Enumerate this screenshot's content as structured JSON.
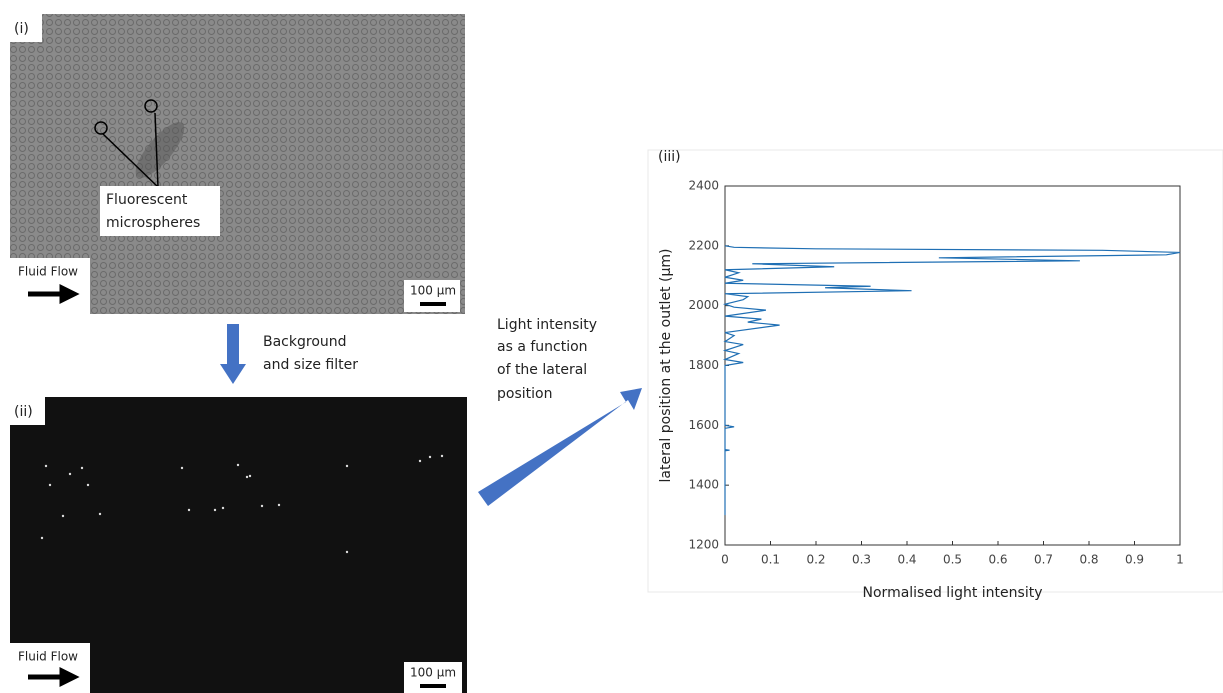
{
  "panels": {
    "i": {
      "label": "(i)",
      "annotation": [
        "Fluorescent",
        "microspheres"
      ],
      "flow": "Fluid Flow",
      "scale": "100 µm"
    },
    "ii": {
      "label": "(ii)",
      "flow": "Fluid Flow",
      "scale": "100 µm"
    }
  },
  "steps": {
    "filter": [
      "Background",
      "and size filter"
    ],
    "profile": [
      "Light intensity",
      "as a function",
      "of the lateral",
      "position"
    ]
  },
  "chart_data": {
    "type": "line",
    "label": "(iii)",
    "xlabel": "Normalised light intensity",
    "ylabel": "lateral position at the outlet (µm)",
    "xlim": [
      0,
      1
    ],
    "xticks": [
      0,
      0.1,
      0.2,
      0.3,
      0.4,
      0.5,
      0.6,
      0.7,
      0.8,
      0.9,
      1
    ],
    "ylim": [
      1200,
      2400
    ],
    "yticks": [
      1200,
      1400,
      1600,
      1800,
      2000,
      2200,
      2400
    ],
    "series": [
      {
        "color": "#1f6fb4",
        "positions": [
          1300,
          1515,
          1517,
          1519,
          1590,
          1595,
          1600,
          1800,
          1810,
          1820,
          1840,
          1850,
          1870,
          1880,
          1900,
          1910,
          1935,
          1945,
          1955,
          1965,
          1985,
          1995,
          2005,
          2020,
          2030,
          2040,
          2050,
          2060,
          2065,
          2075,
          2085,
          2095,
          2110,
          2120,
          2130,
          2140,
          2150,
          2160,
          2170,
          2178,
          2185,
          2190,
          2195,
          2200
        ],
        "values": [
          0,
          0,
          0.01,
          0,
          0,
          0.02,
          0,
          0,
          0.04,
          0,
          0.03,
          0,
          0.04,
          0,
          0.02,
          0,
          0.12,
          0.05,
          0.08,
          0,
          0.09,
          0.02,
          0,
          0.04,
          0.05,
          0,
          0.41,
          0.22,
          0.32,
          0,
          0.04,
          0,
          0.03,
          0,
          0.24,
          0.06,
          0.78,
          0.47,
          0.97,
          1,
          0.83,
          0.2,
          0.02,
          0
        ]
      }
    ]
  }
}
